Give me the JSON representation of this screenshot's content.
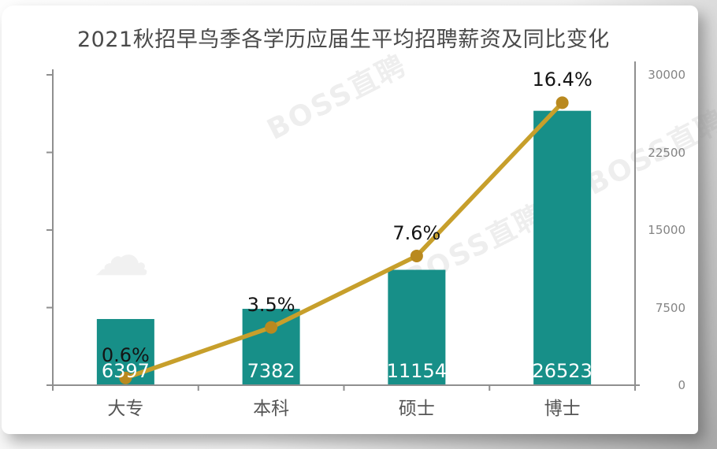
{
  "watermarks": [
    {
      "text": "BOSS直聘"
    },
    {
      "text": "BOSS直聘"
    },
    {
      "text": "BOSS直聘"
    }
  ],
  "decorations": {
    "cloud_icon": "☁"
  },
  "chart_data": {
    "type": "bar",
    "combo": "bar+line",
    "title": "2021秋招早鸟季各学历应届生平均招聘薪资及同比变化",
    "categories": [
      "大专",
      "本科",
      "硕士",
      "博士"
    ],
    "bar_series": {
      "values": [
        6397,
        7382,
        11154,
        26523
      ],
      "data_labels": [
        "6397",
        "7382",
        "11154",
        "26523"
      ],
      "color": "#178f88",
      "label_color": "#ffffff"
    },
    "line_series": {
      "values_percent": [
        0.6,
        3.5,
        7.6,
        16.4
      ],
      "data_labels": [
        "0.6%",
        "3.5%",
        "7.6%",
        "16.4%"
      ],
      "color": "#c79f2b",
      "marker_color": "#b9891f",
      "label_color": "#141414"
    },
    "right_axis": {
      "tick_labels": [
        "0",
        "7500",
        "15000",
        "22500",
        "30000"
      ],
      "min": 0,
      "max": 30000,
      "label_color": "#848484"
    },
    "line_axis": {
      "min": 0,
      "max_estimated": 18
    },
    "axis_color": "#8f8f8f",
    "title_color": "#4a4a4a",
    "category_label_color": "#555555",
    "grid": "off",
    "legend": "none"
  }
}
